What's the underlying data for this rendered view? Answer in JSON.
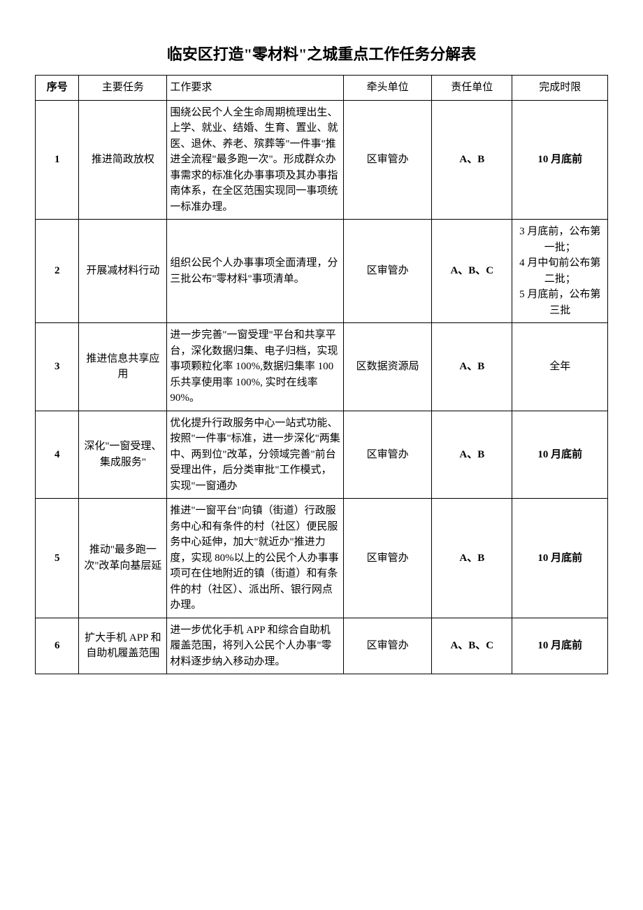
{
  "title": "临安区打造\"零材料\"之城重点工作任务分解表",
  "headers": {
    "seq": "序号",
    "task": "主要任务",
    "req": "工作要求",
    "lead": "牵头单位",
    "resp": "责任单位",
    "deadline": "完成时限"
  },
  "rows": [
    {
      "seq": "1",
      "task": "推进简政放权",
      "req": "围绕公民个人全生命周期梳理出生、上学、就业、结婚、生育、置业、就医、退休、养老、殡葬等\"一件事\"推进全流程\"最多跑一次\"。形成群众办事需求的标准化办事事项及其办事指南体系，在全区范围实现同一事项统一标准办理。",
      "lead": "区审管办",
      "resp": "A、B",
      "deadline": "10 月底前"
    },
    {
      "seq": "2",
      "task": "开展减材料行动",
      "req": "组织公民个人办事事项全面清理，分三批公布\"零材料\"事项清单。",
      "lead": "区审管办",
      "resp": "A、B、C",
      "deadline": "3 月底前，公布第一批；\n4 月中旬前公布第二批；\n5 月底前，公布第三批"
    },
    {
      "seq": "3",
      "task": "推进信息共享应用",
      "req": "进一步完善\"一窗受理\"平台和共享平台，深化数据归集、电子归档，实现事项颗粒化率 100%,数据归集率 100 乐共享使用率 100%, 实时在线率 90%。",
      "lead": "区数据资源局",
      "resp": "A、B",
      "deadline": "全年"
    },
    {
      "seq": "4",
      "task": "深化\"一窗受理、集成服务\"",
      "req": "优化提升行政服务中心一站式功能、按照\"一件事\"标准，进一步深化\"两集中、两到位\"改革，分领域完善\"前台受理出件，后分类审批\"工作模式，实现\"一窗通办",
      "lead": "区审管办",
      "resp": "A、B",
      "deadline": "10 月底前"
    },
    {
      "seq": "5",
      "task": "推动\"最多跑一次\"改革向基层延",
      "req": "推进\"一窗平台\"向镇（街道）行政服务中心和有条件的村（社区）便民服务中心延伸，加大\"就近办\"推进力度，实现 80%以上的公民个人办事事项可在住地附近的镇（街道）和有条件的村（社区）、派出所、银行网点办理。",
      "lead": "区审管办",
      "resp": "A、B",
      "deadline": "10 月底前"
    },
    {
      "seq": "6",
      "task": "扩大手机 APP 和自助机履盖范围",
      "req": "进一步优化手机 APP 和综合自助机履盖范围，将列入公民个人办事\"零材料逐步纳入移动办理。",
      "lead": "区审管办",
      "resp": "A、B、C",
      "deadline": "10 月底前"
    }
  ]
}
